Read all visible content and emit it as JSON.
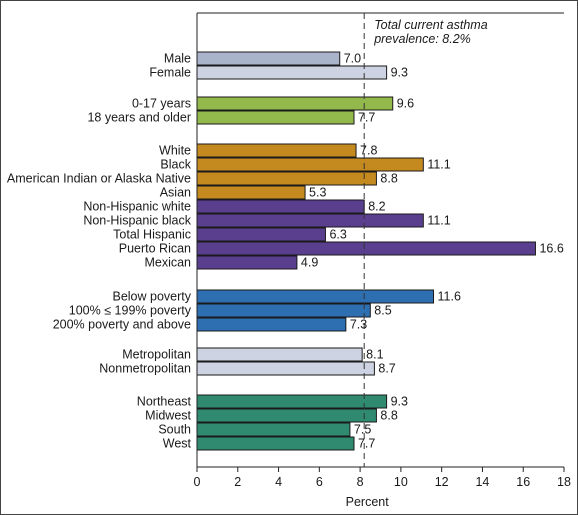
{
  "chart_data": {
    "type": "bar",
    "orientation": "horizontal",
    "xlabel": "Percent",
    "ylabel": "",
    "xlim": [
      0,
      18
    ],
    "xticks": [
      0,
      2,
      4,
      6,
      8,
      10,
      12,
      14,
      16,
      18
    ],
    "grid": false,
    "reference_line": {
      "value": 8.2,
      "style": "dashed",
      "label_line1": "Total current asthma",
      "label_line2": "prevalence: 8.2%"
    },
    "groups": [
      {
        "color": "#a9b3c9",
        "items": [
          {
            "label": "Male",
            "value": 7.0,
            "value_text": "7.0"
          },
          {
            "label": "Female",
            "value": 9.3,
            "value_text": "9.3",
            "color": "#cdd3e2"
          }
        ]
      },
      {
        "color": "#93b84b",
        "items": [
          {
            "label": "0-17 years",
            "value": 9.6,
            "value_text": "9.6"
          },
          {
            "label": "18 years and older",
            "value": 7.7,
            "value_text": "7.7"
          }
        ]
      },
      {
        "color": "#c48a1f",
        "items": [
          {
            "label": "White",
            "value": 7.8,
            "value_text": "7.8"
          },
          {
            "label": "Black",
            "value": 11.1,
            "value_text": "11.1"
          },
          {
            "label": "American Indian or Alaska Native",
            "value": 8.8,
            "value_text": "8.8"
          },
          {
            "label": "Asian",
            "value": 5.3,
            "value_text": "5.3"
          }
        ]
      },
      {
        "color": "#5b3f8f",
        "items": [
          {
            "label": "Non-Hispanic white",
            "value": 8.2,
            "value_text": "8.2"
          },
          {
            "label": "Non-Hispanic black",
            "value": 11.1,
            "value_text": "11.1"
          },
          {
            "label": "Total Hispanic",
            "value": 6.3,
            "value_text": "6.3"
          },
          {
            "label": "Puerto Rican",
            "value": 16.6,
            "value_text": "16.6"
          },
          {
            "label": "Mexican",
            "value": 4.9,
            "value_text": "4.9"
          }
        ]
      },
      {
        "color": "#2d6fb0",
        "items": [
          {
            "label": "Below poverty",
            "value": 11.6,
            "value_text": "11.6"
          },
          {
            "label": "100% ≤ 199% poverty",
            "value": 8.5,
            "value_text": "8.5"
          },
          {
            "label": "200% poverty and above",
            "value": 7.3,
            "value_text": "7.3"
          }
        ]
      },
      {
        "color": "#cdd3e2",
        "items": [
          {
            "label": "Metropolitan",
            "value": 8.1,
            "value_text": "8.1"
          },
          {
            "label": "Nonmetropolitan",
            "value": 8.7,
            "value_text": "8.7"
          }
        ]
      },
      {
        "color": "#2f8a6f",
        "items": [
          {
            "label": "Northeast",
            "value": 9.3,
            "value_text": "9.3"
          },
          {
            "label": "Midwest",
            "value": 8.8,
            "value_text": "8.8"
          },
          {
            "label": "South",
            "value": 7.5,
            "value_text": "7.5"
          },
          {
            "label": "West",
            "value": 7.7,
            "value_text": "7.7"
          }
        ]
      }
    ]
  }
}
